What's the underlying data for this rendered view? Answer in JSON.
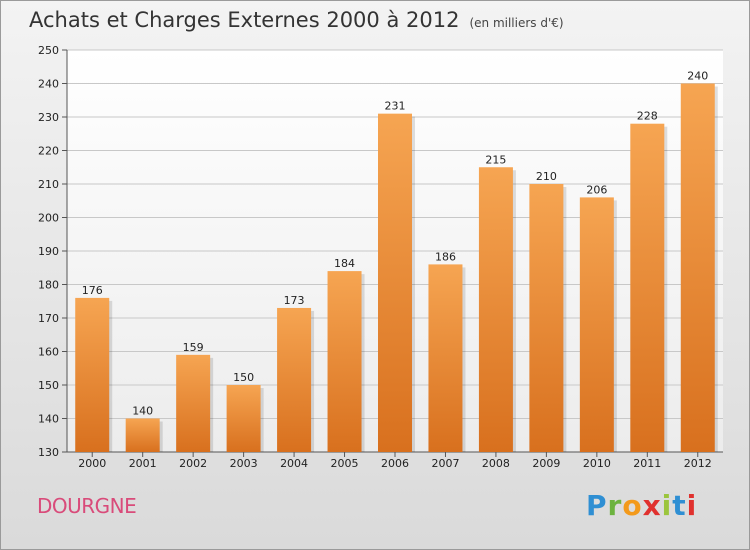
{
  "title": "Achats et Charges Externes 2000 à 2012",
  "unit_note": "(en milliers d'€)",
  "commune": "DOURGNE",
  "brand": {
    "letters": [
      "P",
      "r",
      "o",
      "x",
      "i",
      "t",
      "i"
    ],
    "colors": [
      "#2f8fd3",
      "#6cb33f",
      "#f39a1b",
      "#e0312e",
      "#9bc53d",
      "#2f8fd3",
      "#e0312e"
    ]
  },
  "colors": {
    "bar_top": "#f6a552",
    "bar_bottom": "#d8701e",
    "grid": "#c8c8c8",
    "axis": "#555555",
    "commune": "#d94b7a"
  },
  "chart_data": {
    "type": "bar",
    "categories": [
      "2000",
      "2001",
      "2002",
      "2003",
      "2004",
      "2005",
      "2006",
      "2007",
      "2008",
      "2009",
      "2010",
      "2011",
      "2012"
    ],
    "values": [
      176,
      140,
      159,
      150,
      173,
      184,
      231,
      186,
      215,
      210,
      206,
      228,
      240
    ],
    "ylim": [
      130,
      250
    ],
    "yticks": [
      130,
      140,
      150,
      160,
      170,
      180,
      190,
      200,
      210,
      220,
      230,
      240,
      250
    ],
    "grid": true,
    "title": "Achats et Charges Externes 2000 à 2012",
    "xlabel": "",
    "ylabel": ""
  }
}
